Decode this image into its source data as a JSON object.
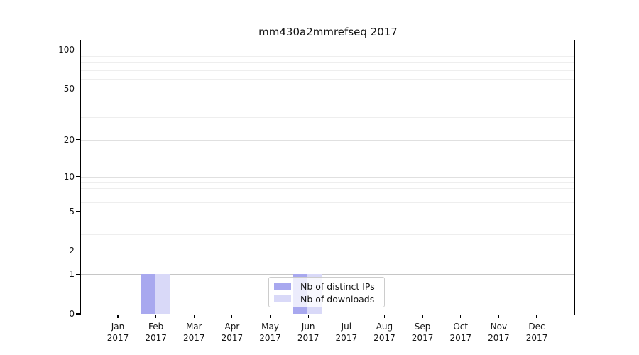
{
  "chart_data": {
    "type": "bar",
    "title": "mm430a2mmrefseq 2017",
    "categories": [
      "Jan",
      "Feb",
      "Mar",
      "Apr",
      "May",
      "Jun",
      "Jul",
      "Aug",
      "Sep",
      "Oct",
      "Nov",
      "Dec"
    ],
    "category_year": "2017",
    "series": [
      {
        "key": "distinct-ips",
        "name": "Nb of distinct IPs",
        "color": "#a8a8ef",
        "values": [
          0,
          1,
          0,
          0,
          0,
          1,
          0,
          0,
          0,
          0,
          0,
          0
        ]
      },
      {
        "key": "downloads",
        "name": "Nb of downloads",
        "color": "#d9d9f8",
        "values": [
          0,
          1,
          0,
          0,
          0,
          1,
          0,
          0,
          0,
          0,
          0,
          0
        ]
      }
    ],
    "xlabel": "",
    "ylabel": "",
    "y_scale": "log1p",
    "ylim": [
      0,
      118
    ],
    "y_ticks": [
      0,
      1,
      2,
      5,
      10,
      20,
      50,
      100
    ],
    "y_minor_gridlines": [
      3,
      4,
      6,
      7,
      8,
      9,
      30,
      40,
      60,
      70,
      80,
      90
    ],
    "grid": true,
    "legend_position": "bottom-center",
    "colors": {
      "axis": "#000000",
      "text": "#141414",
      "grid_minor": "#eeeeee",
      "grid_major": "#e0e0e0",
      "grid_emphasis": "#c6c6c6",
      "legend_border": "#cccccc"
    }
  }
}
